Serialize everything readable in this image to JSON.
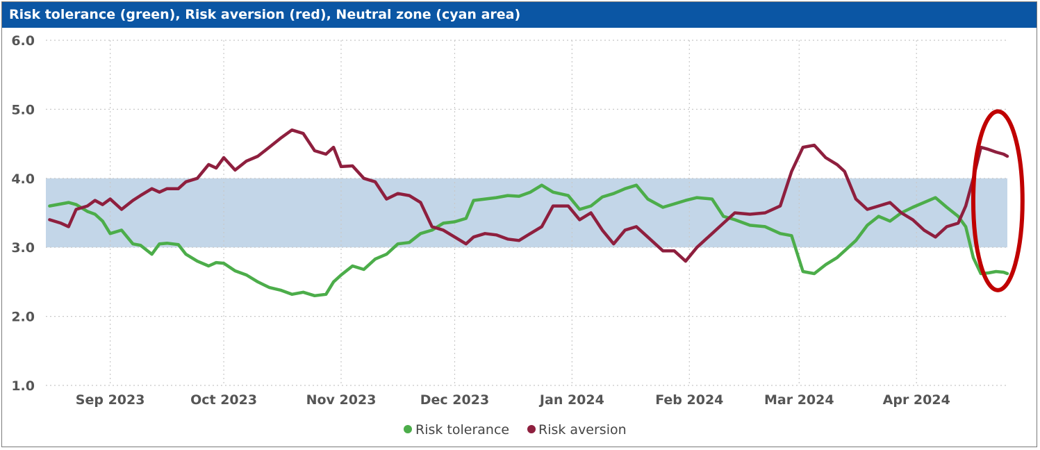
{
  "chart_data": {
    "type": "line",
    "title": "Risk tolerance (green), Risk aversion (red), Neutral zone (cyan area)",
    "xlabel": "",
    "ylabel": "",
    "ylim": [
      1.0,
      6.0
    ],
    "y_ticks": [
      "6.0",
      "5.0",
      "4.0",
      "3.0",
      "2.0",
      "1.0"
    ],
    "x_range": [
      "2023-08-15",
      "2024-04-25"
    ],
    "x_ticks": [
      {
        "date": "2023-09-01",
        "label": "Sep 2023"
      },
      {
        "date": "2023-10-01",
        "label": "Oct 2023"
      },
      {
        "date": "2023-11-01",
        "label": "Nov 2023"
      },
      {
        "date": "2023-12-01",
        "label": "Dec 2023"
      },
      {
        "date": "2024-01-01",
        "label": "Jan 2024"
      },
      {
        "date": "2024-02-01",
        "label": "Feb 2024"
      },
      {
        "date": "2024-03-01",
        "label": "Mar 2024"
      },
      {
        "date": "2024-04-01",
        "label": "Apr 2024"
      }
    ],
    "grid": true,
    "legend_position": "bottom",
    "neutral_zone": {
      "y0": 3.0,
      "y1": 4.0,
      "color": "#c3d6e8"
    },
    "highlight": {
      "shape": "ellipse",
      "date_from": "2024-04-16",
      "date_to": "2024-04-29",
      "y_from": 2.38,
      "y_to": 4.97,
      "color": "#c00000"
    },
    "colors": {
      "tolerance": "#4cad4a",
      "aversion": "#8e1f3e"
    },
    "series": [
      {
        "name": "Risk tolerance",
        "x": [
          "2023-08-16",
          "2023-08-19",
          "2023-08-21",
          "2023-08-23",
          "2023-08-26",
          "2023-08-28",
          "2023-08-30",
          "2023-09-01",
          "2023-09-04",
          "2023-09-07",
          "2023-09-09",
          "2023-09-12",
          "2023-09-14",
          "2023-09-16",
          "2023-09-19",
          "2023-09-21",
          "2023-09-24",
          "2023-09-27",
          "2023-09-29",
          "2023-10-01",
          "2023-10-04",
          "2023-10-07",
          "2023-10-10",
          "2023-10-13",
          "2023-10-16",
          "2023-10-19",
          "2023-10-22",
          "2023-10-25",
          "2023-10-28",
          "2023-10-30",
          "2023-11-01",
          "2023-11-04",
          "2023-11-07",
          "2023-11-10",
          "2023-11-13",
          "2023-11-16",
          "2023-11-19",
          "2023-11-22",
          "2023-11-25",
          "2023-11-28",
          "2023-12-01",
          "2023-12-04",
          "2023-12-06",
          "2023-12-09",
          "2023-12-12",
          "2023-12-15",
          "2023-12-18",
          "2023-12-21",
          "2023-12-24",
          "2023-12-27",
          "2023-12-31",
          "2024-01-03",
          "2024-01-06",
          "2024-01-09",
          "2024-01-12",
          "2024-01-15",
          "2024-01-18",
          "2024-01-21",
          "2024-01-25",
          "2024-01-28",
          "2024-01-31",
          "2024-02-03",
          "2024-02-07",
          "2024-02-10",
          "2024-02-13",
          "2024-02-17",
          "2024-02-21",
          "2024-02-25",
          "2024-02-28",
          "2024-03-02",
          "2024-03-05",
          "2024-03-08",
          "2024-03-11",
          "2024-03-13",
          "2024-03-16",
          "2024-03-19",
          "2024-03-22",
          "2024-03-25",
          "2024-03-28",
          "2024-03-31",
          "2024-04-03",
          "2024-04-06",
          "2024-04-09",
          "2024-04-12",
          "2024-04-14",
          "2024-04-16",
          "2024-04-18",
          "2024-04-20",
          "2024-04-22",
          "2024-04-24",
          "2024-04-25"
        ],
        "values": [
          3.6,
          3.63,
          3.65,
          3.62,
          3.52,
          3.48,
          3.38,
          3.2,
          3.25,
          3.05,
          3.03,
          2.9,
          3.05,
          3.06,
          3.04,
          2.9,
          2.8,
          2.73,
          2.78,
          2.77,
          2.66,
          2.6,
          2.5,
          2.42,
          2.38,
          2.32,
          2.35,
          2.3,
          2.32,
          2.5,
          2.6,
          2.73,
          2.68,
          2.83,
          2.9,
          3.05,
          3.07,
          3.2,
          3.25,
          3.35,
          3.37,
          3.42,
          3.68,
          3.7,
          3.72,
          3.75,
          3.74,
          3.8,
          3.9,
          3.8,
          3.75,
          3.55,
          3.6,
          3.73,
          3.78,
          3.85,
          3.9,
          3.7,
          3.58,
          3.63,
          3.68,
          3.72,
          3.7,
          3.45,
          3.4,
          3.32,
          3.3,
          3.2,
          3.17,
          2.65,
          2.62,
          2.75,
          2.85,
          2.95,
          3.1,
          3.32,
          3.45,
          3.38,
          3.5,
          3.58,
          3.65,
          3.72,
          3.58,
          3.45,
          3.3,
          2.85,
          2.62,
          2.63,
          2.65,
          2.64,
          2.62
        ]
      },
      {
        "name": "Risk aversion",
        "x": [
          "2023-08-16",
          "2023-08-19",
          "2023-08-21",
          "2023-08-23",
          "2023-08-26",
          "2023-08-28",
          "2023-08-30",
          "2023-09-01",
          "2023-09-04",
          "2023-09-07",
          "2023-09-09",
          "2023-09-12",
          "2023-09-14",
          "2023-09-16",
          "2023-09-19",
          "2023-09-21",
          "2023-09-24",
          "2023-09-27",
          "2023-09-29",
          "2023-10-01",
          "2023-10-04",
          "2023-10-07",
          "2023-10-10",
          "2023-10-13",
          "2023-10-16",
          "2023-10-19",
          "2023-10-22",
          "2023-10-25",
          "2023-10-28",
          "2023-10-30",
          "2023-11-01",
          "2023-11-04",
          "2023-11-07",
          "2023-11-10",
          "2023-11-13",
          "2023-11-16",
          "2023-11-19",
          "2023-11-22",
          "2023-11-25",
          "2023-11-28",
          "2023-12-01",
          "2023-12-04",
          "2023-12-06",
          "2023-12-09",
          "2023-12-12",
          "2023-12-15",
          "2023-12-18",
          "2023-12-21",
          "2023-12-24",
          "2023-12-27",
          "2023-12-31",
          "2024-01-03",
          "2024-01-06",
          "2024-01-09",
          "2024-01-12",
          "2024-01-15",
          "2024-01-18",
          "2024-01-21",
          "2024-01-25",
          "2024-01-28",
          "2024-01-31",
          "2024-02-03",
          "2024-02-07",
          "2024-02-10",
          "2024-02-13",
          "2024-02-17",
          "2024-02-21",
          "2024-02-25",
          "2024-02-28",
          "2024-03-02",
          "2024-03-05",
          "2024-03-08",
          "2024-03-11",
          "2024-03-13",
          "2024-03-16",
          "2024-03-19",
          "2024-03-22",
          "2024-03-25",
          "2024-03-28",
          "2024-03-31",
          "2024-04-03",
          "2024-04-06",
          "2024-04-09",
          "2024-04-12",
          "2024-04-14",
          "2024-04-16",
          "2024-04-18",
          "2024-04-20",
          "2024-04-22",
          "2024-04-24",
          "2024-04-25"
        ],
        "values": [
          3.4,
          3.35,
          3.3,
          3.55,
          3.6,
          3.68,
          3.62,
          3.7,
          3.55,
          3.68,
          3.75,
          3.85,
          3.8,
          3.85,
          3.85,
          3.95,
          4.0,
          4.2,
          4.15,
          4.3,
          4.12,
          4.25,
          4.32,
          4.45,
          4.58,
          4.7,
          4.65,
          4.4,
          4.35,
          4.45,
          4.17,
          4.18,
          4.0,
          3.95,
          3.7,
          3.78,
          3.75,
          3.65,
          3.3,
          3.25,
          3.15,
          3.05,
          3.15,
          3.2,
          3.18,
          3.12,
          3.1,
          3.2,
          3.3,
          3.6,
          3.6,
          3.4,
          3.5,
          3.25,
          3.05,
          3.25,
          3.3,
          3.15,
          2.95,
          2.95,
          2.8,
          3.0,
          3.2,
          3.35,
          3.5,
          3.48,
          3.5,
          3.6,
          4.1,
          4.45,
          4.48,
          4.3,
          4.2,
          4.1,
          3.7,
          3.55,
          3.6,
          3.65,
          3.5,
          3.4,
          3.25,
          3.15,
          3.3,
          3.35,
          3.6,
          4.0,
          4.45,
          4.42,
          4.38,
          4.35,
          4.32
        ]
      }
    ]
  }
}
